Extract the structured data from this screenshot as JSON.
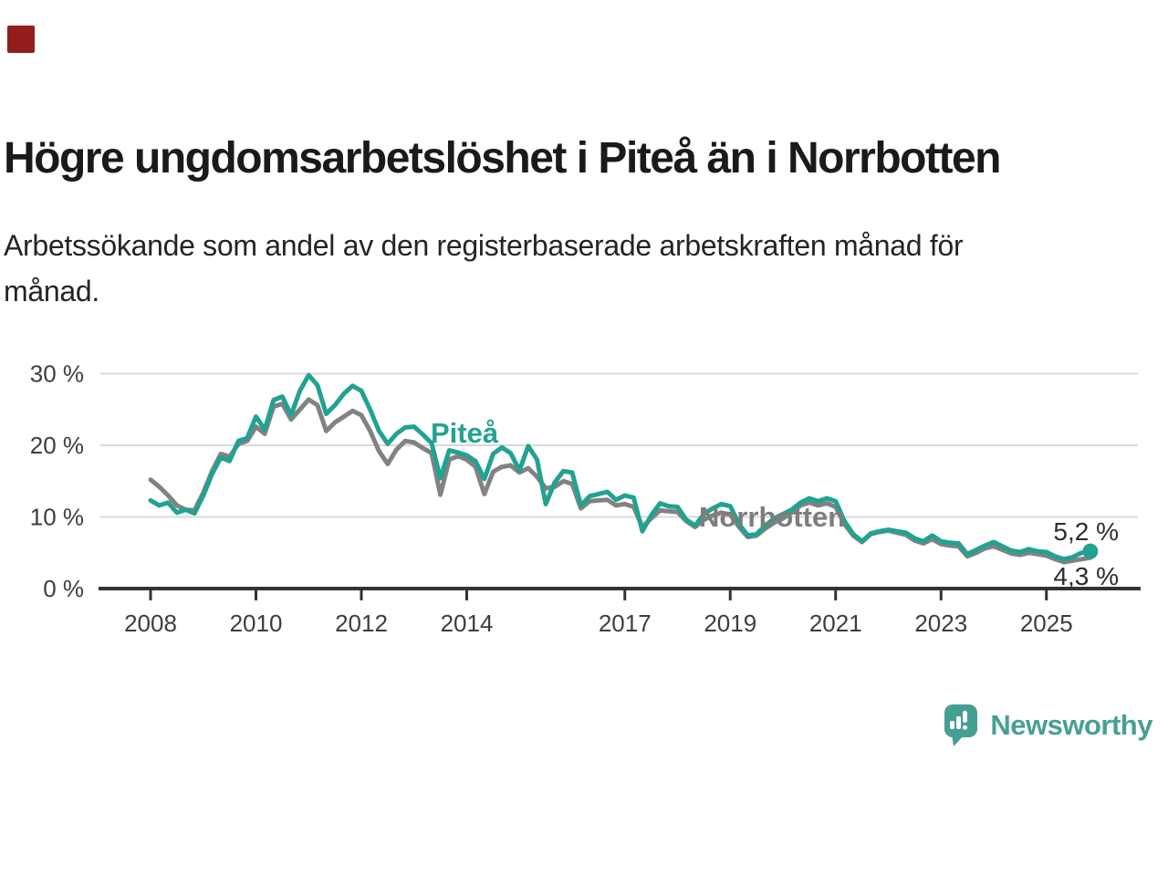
{
  "brand": {
    "category_square_color": "#911d1d",
    "logo": {
      "text": "Newsworthy",
      "color": "#45a093",
      "icon": "bar-chart-speech-bubble-icon"
    }
  },
  "header": {
    "title": "Högre ungdomsarbetslöshet i Piteå än i Norrbotten",
    "subtitle": "Arbetssökande som andel av den registerbaserade arbetskraften månad för\nmånad."
  },
  "chart_data": {
    "type": "line",
    "title": "Högre ungdomsarbetslöshet i Piteå än i Norrbotten",
    "subtitle": "Arbetssökande som andel av den registerbaserade arbetskraften månad för månad.",
    "x_unit": "year",
    "xlim": [
      2007.9,
      2026.2
    ],
    "ylim": [
      0,
      31.5
    ],
    "grid": "horizontal",
    "legend_position": "inline-labels",
    "yticks": [
      {
        "value": 30,
        "label": "30 %"
      },
      {
        "value": 20,
        "label": "20 %"
      },
      {
        "value": 10,
        "label": "10 %"
      },
      {
        "value": 0,
        "label": "0 %"
      }
    ],
    "xticks": [
      {
        "value": 2008,
        "label": "2008"
      },
      {
        "value": 2010,
        "label": "2010"
      },
      {
        "value": 2012,
        "label": "2012"
      },
      {
        "value": 2014,
        "label": "2014"
      },
      {
        "value": 2017,
        "label": "2017"
      },
      {
        "value": 2019,
        "label": "2019"
      },
      {
        "value": 2021,
        "label": "2021"
      },
      {
        "value": 2023,
        "label": "2023"
      },
      {
        "value": 2025,
        "label": "2025"
      }
    ],
    "series": [
      {
        "name": "Piteå",
        "color": "#21a292",
        "end_label": "5,2 %",
        "end_value": 5.2,
        "end_dot": true,
        "x_start": 2008.0,
        "x_step": 0.16667,
        "values": [
          12.3,
          11.6,
          12.0,
          10.6,
          11.0,
          10.5,
          13.0,
          16.0,
          18.3,
          17.8,
          20.6,
          21.0,
          24.0,
          22.2,
          26.3,
          26.8,
          24.2,
          27.6,
          29.8,
          28.4,
          24.4,
          25.6,
          27.2,
          28.3,
          27.6,
          25.0,
          22.0,
          20.2,
          21.6,
          22.5,
          22.6,
          21.5,
          20.3,
          15.4,
          19.3,
          19.0,
          18.6,
          17.8,
          15.3,
          18.8,
          19.7,
          18.9,
          16.5,
          19.9,
          18.0,
          11.8,
          14.8,
          16.4,
          16.2,
          11.6,
          12.9,
          13.2,
          13.5,
          12.4,
          13.0,
          12.7,
          8.0,
          10.2,
          11.9,
          11.5,
          11.4,
          9.6,
          8.8,
          10.4,
          11.2,
          11.8,
          11.5,
          9.0,
          7.4,
          7.6,
          8.8,
          9.8,
          10.4,
          11.0,
          12.0,
          12.6,
          12.2,
          12.6,
          12.2,
          9.4,
          7.6,
          6.6,
          7.7,
          8.0,
          8.2,
          8.0,
          7.8,
          7.0,
          6.6,
          7.4,
          6.6,
          6.4,
          6.3,
          4.8,
          5.4,
          6.0,
          6.5,
          5.9,
          5.3,
          5.1,
          5.5,
          5.2,
          5.1,
          4.5,
          4.1,
          4.4,
          5.0,
          5.2
        ]
      },
      {
        "name": "Norrbotten",
        "color": "#828282",
        "label_color": "#7d7d7d",
        "end_label": "4,3 %",
        "end_value": 4.3,
        "end_dot": false,
        "x_start": 2008.0,
        "x_step": 0.16667,
        "values": [
          15.2,
          14.2,
          13.0,
          11.6,
          11.0,
          10.9,
          13.4,
          16.4,
          18.8,
          18.4,
          20.2,
          20.6,
          22.6,
          21.6,
          25.4,
          25.8,
          23.6,
          25.0,
          26.4,
          25.6,
          22.0,
          23.2,
          24.0,
          24.8,
          24.2,
          22.0,
          19.2,
          17.4,
          19.4,
          20.6,
          20.4,
          19.6,
          18.9,
          13.1,
          18.0,
          18.5,
          18.0,
          17.0,
          13.2,
          16.3,
          17.0,
          17.2,
          16.2,
          16.8,
          15.6,
          14.0,
          14.2,
          15.0,
          14.6,
          11.2,
          12.2,
          12.3,
          12.4,
          11.6,
          11.8,
          11.4,
          8.6,
          9.8,
          10.9,
          10.8,
          10.7,
          9.4,
          8.6,
          9.6,
          10.2,
          10.6,
          10.3,
          8.6,
          7.2,
          7.4,
          8.4,
          9.2,
          9.8,
          10.6,
          11.6,
          12.0,
          11.6,
          11.9,
          11.4,
          9.0,
          7.4,
          6.5,
          7.6,
          7.9,
          8.1,
          7.8,
          7.5,
          6.7,
          6.3,
          6.9,
          6.2,
          6.0,
          5.9,
          4.5,
          5.0,
          5.6,
          5.9,
          5.4,
          4.9,
          4.7,
          5.0,
          4.8,
          4.6,
          4.1,
          3.7,
          3.9,
          4.1,
          4.3
        ]
      }
    ]
  }
}
